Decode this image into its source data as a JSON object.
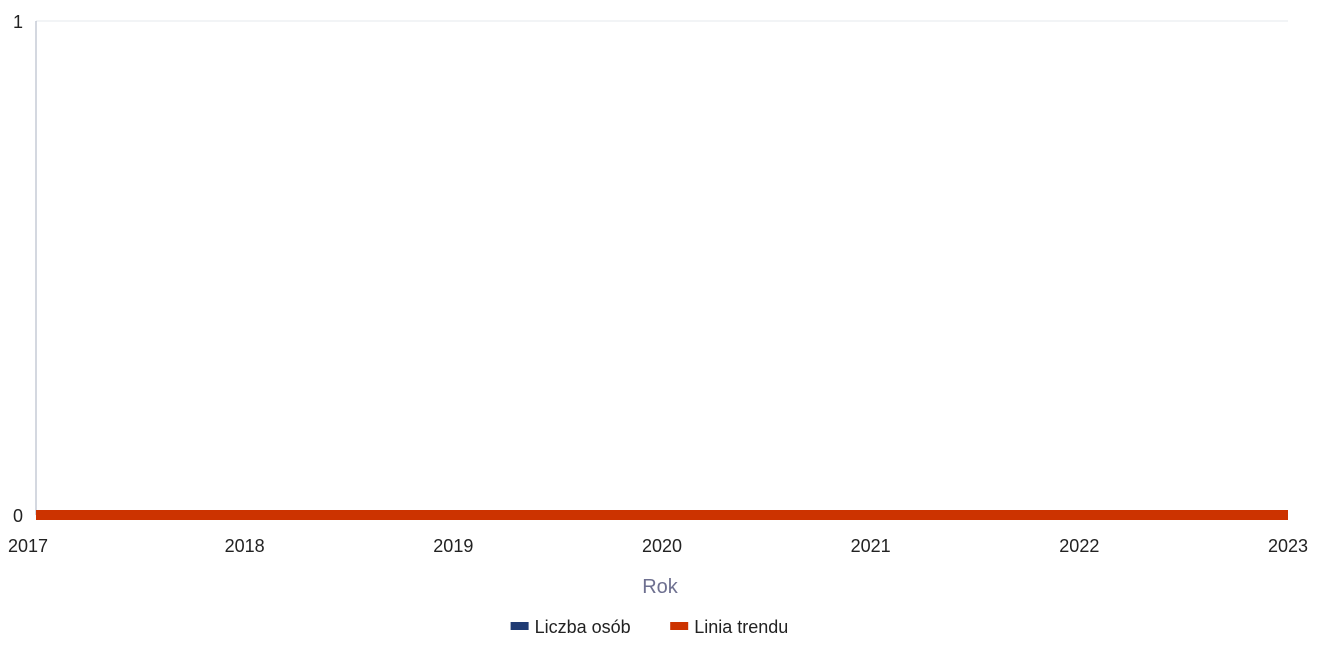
{
  "chart_data": {
    "type": "line",
    "x": [
      2017,
      2018,
      2019,
      2020,
      2021,
      2022,
      2023
    ],
    "xlabel": "Rok",
    "ylabel": "",
    "ylim": [
      0,
      1
    ],
    "y_ticks": [
      0,
      1
    ],
    "grid": true,
    "legend_position": "bottom-center",
    "series": [
      {
        "name": "Liczba osób",
        "color": "#1f3b73",
        "values": [
          0,
          0,
          0,
          0,
          0,
          0,
          0
        ]
      },
      {
        "name": "Linia trendu",
        "color": "#cc3300",
        "values": [
          0,
          0,
          0,
          0,
          0,
          0,
          0
        ]
      }
    ]
  }
}
